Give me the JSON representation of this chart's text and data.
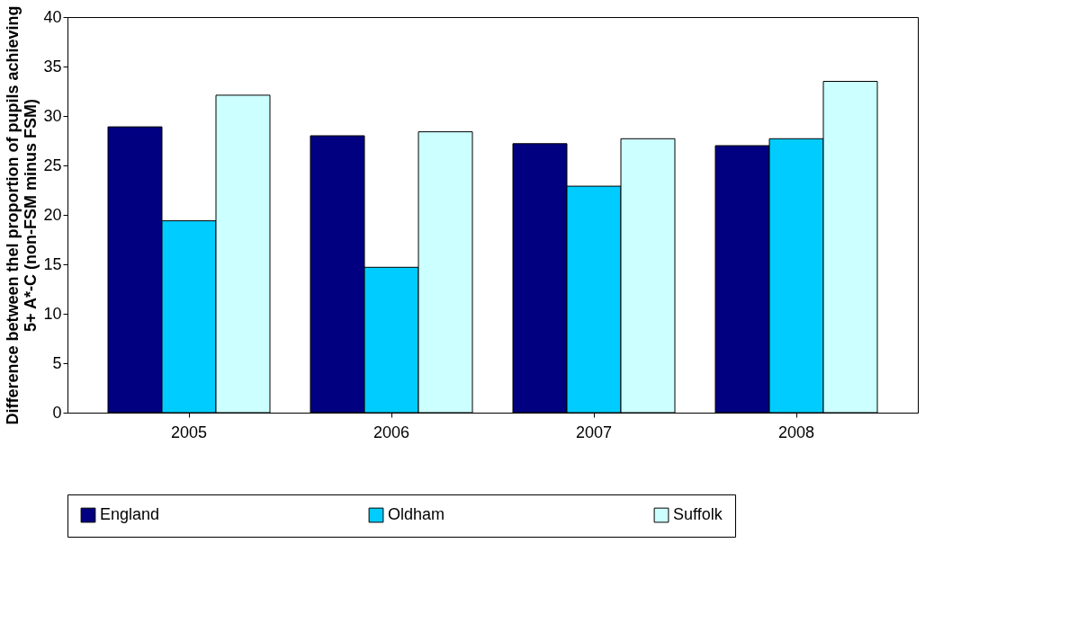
{
  "chart_data": {
    "type": "bar",
    "ylabel": "Difference between thel proportion of pupils achieving\n5+ A*-C (non-FSM minus FSM)",
    "categories": [
      "2005",
      "2006",
      "2007",
      "2008"
    ],
    "series": [
      {
        "name": "England",
        "color": "#000080",
        "values": [
          28.9,
          28.0,
          27.2,
          27.0
        ]
      },
      {
        "name": "Oldham",
        "color": "#00ccff",
        "values": [
          19.4,
          14.7,
          22.9,
          27.7
        ]
      },
      {
        "name": "Suffolk",
        "color": "#ccffff",
        "values": [
          32.1,
          28.4,
          27.7,
          33.5
        ]
      }
    ],
    "ylim": [
      0,
      40
    ],
    "yticks": [
      0,
      5,
      10,
      15,
      20,
      25,
      30,
      35,
      40
    ],
    "grid": false,
    "legend": "bottom"
  }
}
